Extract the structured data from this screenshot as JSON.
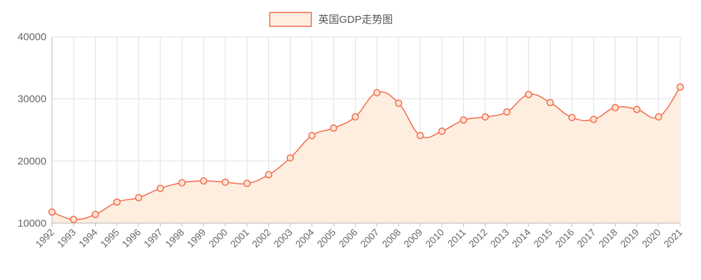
{
  "chart_data": {
    "type": "area",
    "legend_label": "英国GDP走势图",
    "legend_position": "top-center",
    "x": [
      "1992",
      "1993",
      "1994",
      "1995",
      "1996",
      "1997",
      "1998",
      "1999",
      "2000",
      "2001",
      "2002",
      "2003",
      "2004",
      "2005",
      "2006",
      "2007",
      "2008",
      "2009",
      "2010",
      "2011",
      "2012",
      "2013",
      "2014",
      "2015",
      "2016",
      "2017",
      "2018",
      "2019",
      "2020",
      "2021"
    ],
    "series": [
      {
        "name": "英国GDP走势图",
        "values": [
          11800,
          10600,
          11400,
          13400,
          14100,
          15600,
          16500,
          16800,
          16600,
          16400,
          17800,
          20500,
          24100,
          25300,
          27100,
          31000,
          29300,
          24100,
          24800,
          26600,
          27100,
          27900,
          30700,
          29400,
          27000,
          26700,
          28600,
          28300,
          27100,
          31900
        ]
      }
    ],
    "ylim": [
      10000,
      40000
    ],
    "yticks": [
      "10000",
      "20000",
      "30000",
      "40000"
    ],
    "grid": true,
    "colors": {
      "line": "#f26a4b",
      "fill": "#fdeee0"
    }
  }
}
